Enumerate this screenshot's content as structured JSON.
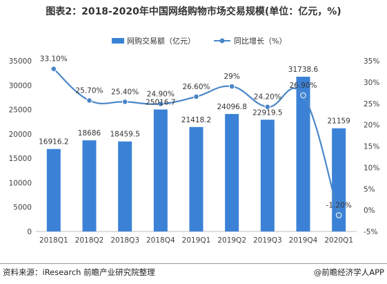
{
  "title": "图表2：2018-2020年中国网络购物市场交易规模(单位：亿元，%)",
  "source": "资料来源：iResearch 前瞻产业研究院整理",
  "brand": "@前瞻经济学人APP",
  "colors": {
    "bar": "#3b82d6",
    "line": "#4a86c8",
    "axis": "#bfbfbf",
    "text": "#404040"
  },
  "chart_data": {
    "type": "bar",
    "categories": [
      "2018Q1",
      "2018Q2",
      "2018Q3",
      "2018Q4",
      "2019Q1",
      "2019Q2",
      "2019Q3",
      "2019Q4",
      "2020Q1"
    ],
    "series": [
      {
        "name": "网购交易额（亿元）",
        "type": "bar",
        "axis": "left",
        "values": [
          16916.2,
          18686,
          18459.5,
          25016.7,
          21418.2,
          24096.8,
          22919.5,
          31738.6,
          21159
        ],
        "labels": [
          "16916.2",
          "18686",
          "18459.5",
          "25016.7",
          "21418.2",
          "24096.8",
          "22919.5",
          "31738.6",
          "21159"
        ]
      },
      {
        "name": "同比增长（%）",
        "type": "line",
        "axis": "right",
        "values": [
          33.1,
          25.7,
          25.4,
          24.9,
          26.6,
          29,
          24.2,
          26.9,
          -1.2
        ],
        "labels": [
          "33.10%",
          "25.70%",
          "25.40%",
          "24.90%",
          "26.60%",
          "29%",
          "24.20%",
          "26.90%",
          "-1.20%"
        ]
      }
    ],
    "left_axis": {
      "ylim": [
        0,
        35000
      ],
      "ticks": [
        "0",
        "5000",
        "10000",
        "15000",
        "20000",
        "25000",
        "30000",
        "35000"
      ]
    },
    "right_axis": {
      "ylim": [
        -5,
        35
      ],
      "ticks": [
        "-5%",
        "0%",
        "5%",
        "10%",
        "15%",
        "20%",
        "25%",
        "30%",
        "35%"
      ]
    },
    "legend_position": "top-center",
    "grid": false
  }
}
